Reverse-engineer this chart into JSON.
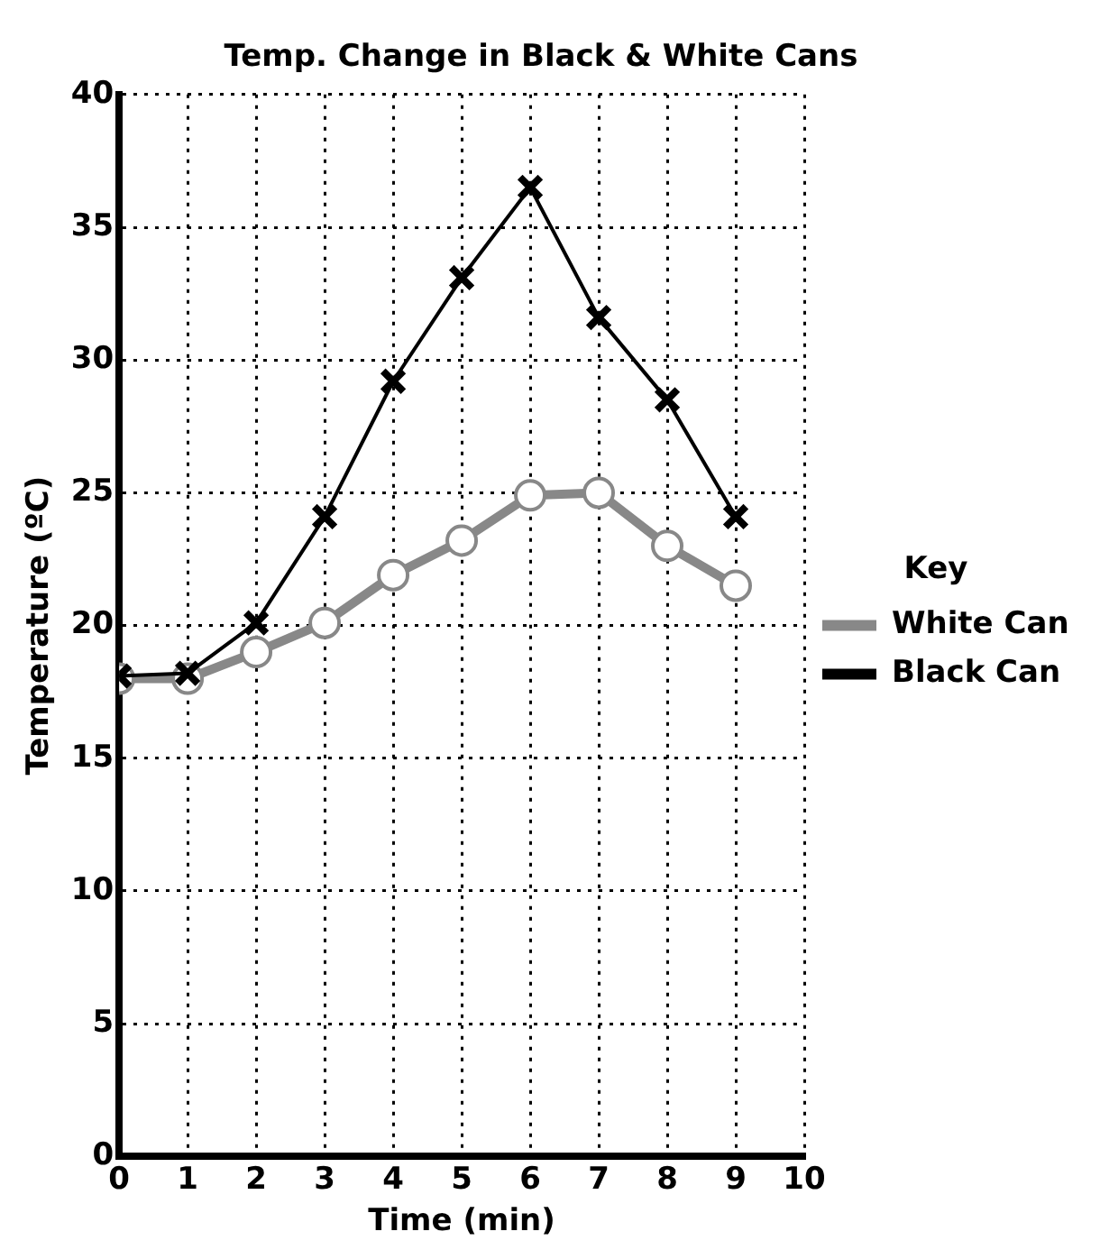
{
  "chart_data": {
    "type": "line",
    "title": "Temp. Change in Black & White Cans",
    "xlabel": "Time (min)",
    "ylabel": "Temperature (ºC)",
    "legend_title": "Key",
    "x": [
      0,
      1,
      2,
      3,
      4,
      5,
      6,
      7,
      8,
      9
    ],
    "series": [
      {
        "name": "White Can",
        "color": "#888888",
        "marker": "circle",
        "values": [
          18,
          18,
          19,
          20.1,
          21.9,
          23.2,
          24.9,
          25,
          23,
          21.5
        ]
      },
      {
        "name": "Black Can",
        "color": "#000000",
        "marker": "cross",
        "values": [
          18.1,
          18.2,
          20.1,
          24.1,
          29.2,
          33.1,
          36.5,
          31.6,
          28.5,
          24.1
        ]
      }
    ],
    "xlim": [
      0,
      10
    ],
    "xticks": [
      0,
      1,
      2,
      3,
      4,
      5,
      6,
      7,
      8,
      9,
      10
    ],
    "ylim": [
      0,
      40
    ],
    "yticks": [
      0,
      5,
      10,
      15,
      20,
      25,
      30,
      35,
      40
    ],
    "grid": true,
    "legend": "right",
    "line_style": "solid"
  }
}
